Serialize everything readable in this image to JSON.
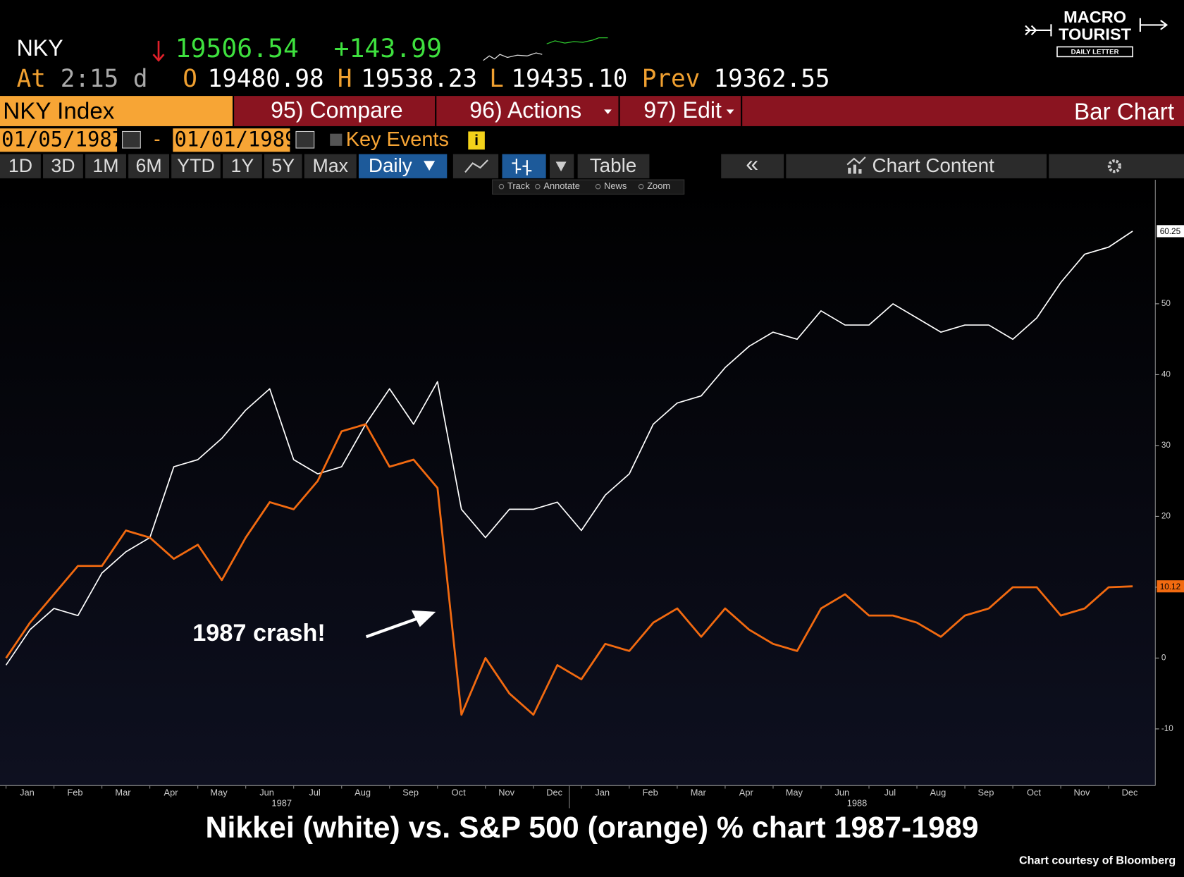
{
  "header": {
    "ticker": "NKY",
    "last": "19506.54",
    "change": "+143.99",
    "time_label": "At",
    "time": "2:15 d",
    "open_label": "O",
    "open": "19480.98",
    "high_label": "H",
    "high": "19538.23",
    "low_label": "L",
    "low": "19435.10",
    "prev_label": "Prev",
    "prev": "19362.55"
  },
  "toolbar": {
    "security": "NKY Index",
    "compare": "95) Compare",
    "actions": "96) Actions",
    "edit": "97) Edit",
    "chart_type": "Bar Chart"
  },
  "date_range": {
    "start": "01/05/1987",
    "separator": "-",
    "end": "01/01/1989",
    "key_events": "Key Events",
    "info": "i"
  },
  "tabs": [
    "1D",
    "3D",
    "1M",
    "6M",
    "YTD",
    "1Y",
    "5Y",
    "Max"
  ],
  "frequency": "Daily",
  "table": "Table",
  "collapse": "«",
  "chart_content": "Chart Content",
  "chart_tools": [
    "Track",
    "Annotate",
    "News",
    "Zoom"
  ],
  "logo": {
    "line1": "MACRO",
    "line2": "TOURIST",
    "line3": "DAILY LETTER"
  },
  "chart_data": {
    "type": "line",
    "title": "Nikkei (white) vs. S&P 500 (orange) % chart 1987-1989",
    "source": "Chart courtesy of Bloomberg",
    "annotation": "1987 crash!",
    "categories": [
      "Jan",
      null,
      "Feb",
      null,
      "Mar",
      null,
      "Apr",
      null,
      "May",
      null,
      "Jun",
      null,
      "Jul",
      null,
      "Aug",
      null,
      "Sep",
      null,
      "Oct",
      null,
      "Nov",
      null,
      "Dec",
      null,
      "Jan",
      null,
      "Feb",
      null,
      "Mar",
      null,
      "Apr",
      null,
      "May",
      null,
      "Jun",
      null,
      "Jul",
      null,
      "Aug",
      null,
      "Sep",
      null,
      "Oct",
      null,
      "Nov",
      null,
      "Dec",
      null
    ],
    "year_labels": [
      "1987",
      "1988"
    ],
    "series": [
      {
        "color": "#ffffff",
        "values": [
          -1,
          4,
          7,
          6,
          12,
          15,
          17,
          27,
          28,
          31,
          35,
          38,
          28,
          26,
          27,
          33,
          38,
          33,
          39,
          21,
          17,
          21,
          21,
          22,
          18,
          23,
          26,
          33,
          36,
          37,
          41,
          44,
          46,
          45,
          49,
          47,
          47,
          50,
          48,
          46,
          47,
          47,
          45,
          48,
          53,
          57,
          58,
          60.25
        ]
      },
      {
        "color": "#f26a10",
        "values": [
          0,
          5,
          9,
          13,
          13,
          18,
          17,
          14,
          16,
          11,
          17,
          22,
          21,
          25,
          32,
          33,
          27,
          28,
          24,
          -8,
          0,
          -5,
          -8,
          -1,
          -3,
          2,
          1,
          5,
          7,
          3,
          7,
          4,
          2,
          1,
          7,
          9,
          6,
          6,
          5,
          3,
          6,
          7,
          10,
          10,
          6,
          7,
          10,
          10.12
        ]
      }
    ],
    "ylim": [
      -18,
      67.5
    ],
    "yticks": [
      -10,
      0,
      10,
      20,
      30,
      40,
      50
    ],
    "y_axis_side": "right"
  }
}
